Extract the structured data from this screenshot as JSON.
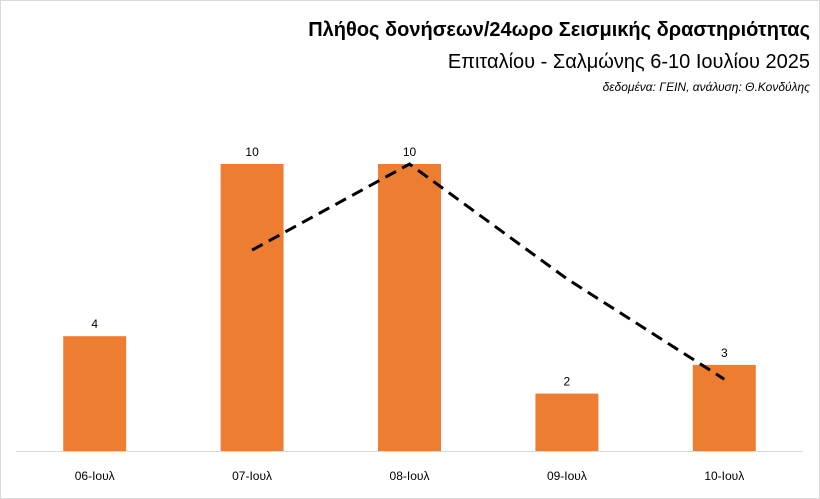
{
  "chart_data": {
    "type": "bar",
    "title": "Πλήθος δονήσεων/24ωρο Σεισμικής δραστηριότητας",
    "subtitle": "Επιταλίου - Σαλμώνης 6-10 Ιουλίου 2025",
    "source": "δεδομένα: ΓΕΙΝ, ανάλυση: Θ.Κονδύλης",
    "categories": [
      "06-Ιουλ",
      "07-Ιουλ",
      "08-Ιουλ",
      "09-Ιουλ",
      "10-Ιουλ"
    ],
    "series": [
      {
        "type": "bar",
        "color": "#ed7d31",
        "values": [
          4,
          10,
          10,
          2,
          3
        ],
        "data_labels": true
      },
      {
        "type": "line",
        "color": "#000000",
        "dashed": true,
        "values": [
          null,
          7,
          10,
          6,
          2.5
        ]
      }
    ],
    "ylim": [
      0,
      10
    ]
  }
}
